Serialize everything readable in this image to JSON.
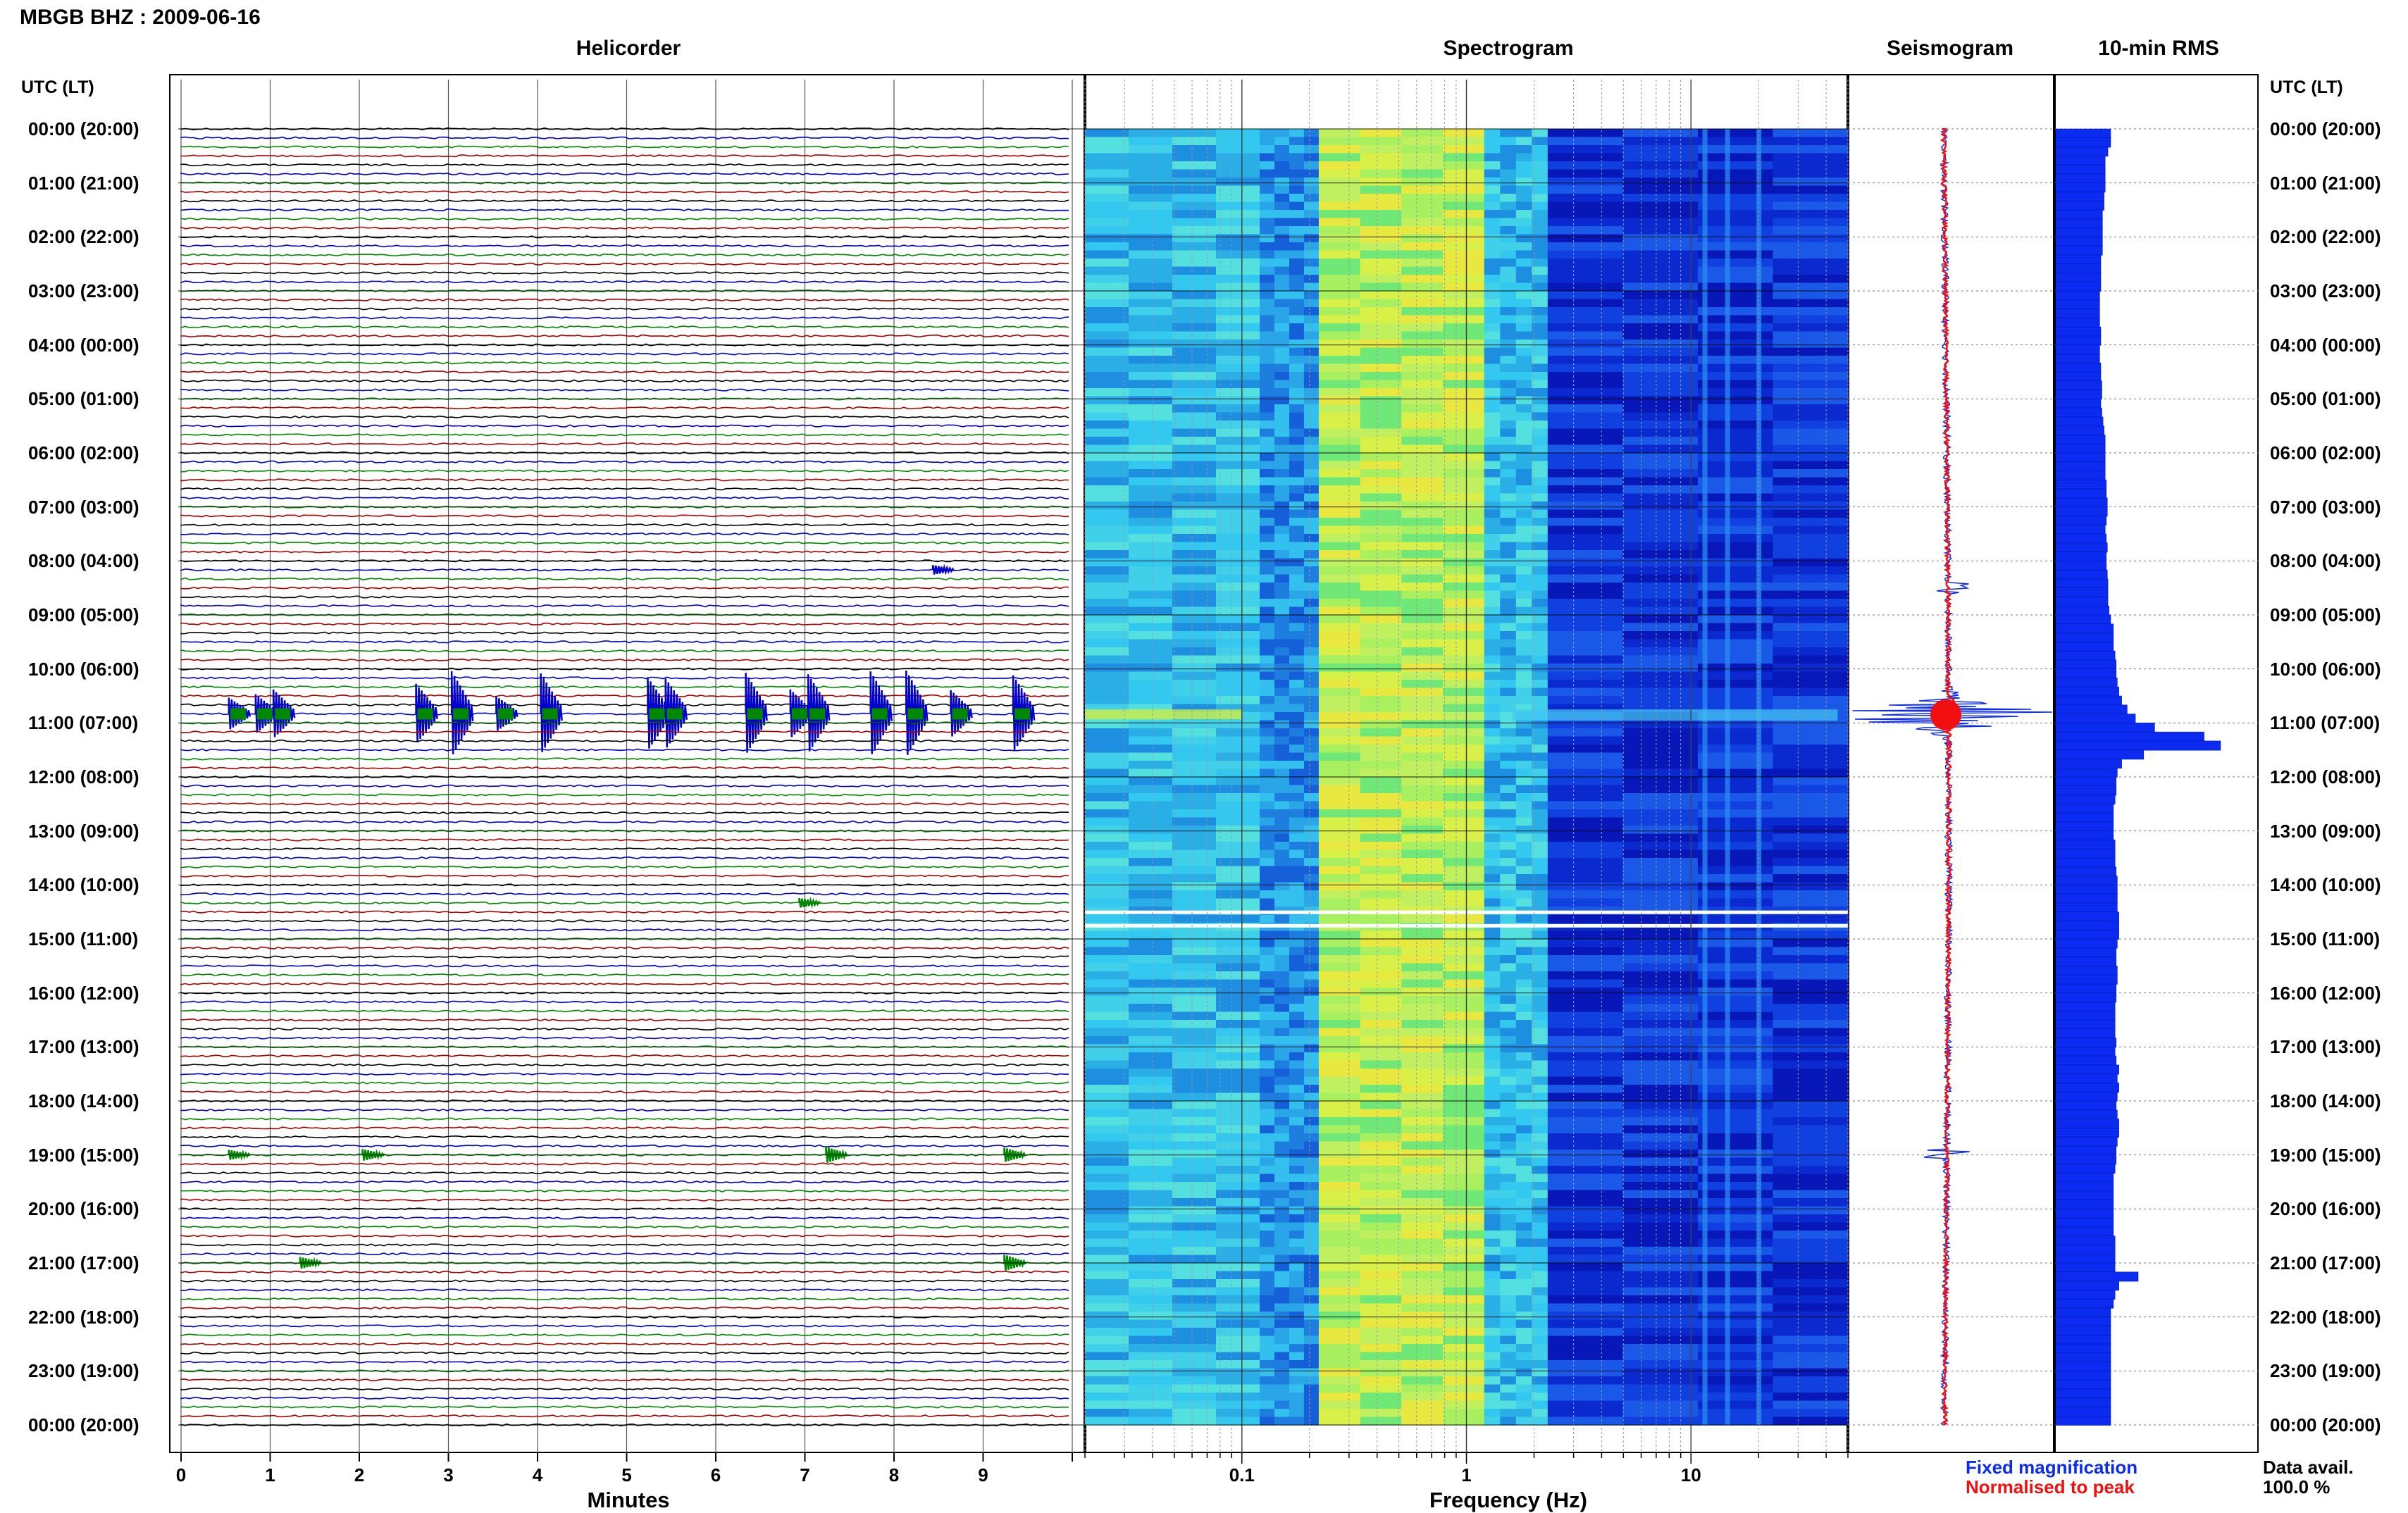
{
  "header": {
    "station": "MBGB BHZ : 2009-06-16",
    "utc_label_left": "UTC (LT)",
    "utc_label_right": "UTC (LT)"
  },
  "panels": {
    "helicorder": "Helicorder",
    "spectrogram": "Spectrogram",
    "seismogram": "Seismogram",
    "rms": "10-min RMS"
  },
  "time_labels": [
    "00:00 (20:00)",
    "01:00 (21:00)",
    "02:00 (22:00)",
    "03:00 (23:00)",
    "04:00 (00:00)",
    "05:00 (01:00)",
    "06:00 (02:00)",
    "07:00 (03:00)",
    "08:00 (04:00)",
    "09:00 (05:00)",
    "10:00 (06:00)",
    "11:00 (07:00)",
    "12:00 (08:00)",
    "13:00 (09:00)",
    "14:00 (10:00)",
    "15:00 (11:00)",
    "16:00 (12:00)",
    "17:00 (13:00)",
    "18:00 (14:00)",
    "19:00 (15:00)",
    "20:00 (16:00)",
    "21:00 (17:00)",
    "22:00 (18:00)",
    "23:00 (19:00)",
    "00:00 (20:00)"
  ],
  "footer": {
    "legend_fixed": "Fixed magnification",
    "legend_norm": "Normalised to peak",
    "data_avail_label": "Data avail.",
    "data_avail_value": "100.0 %"
  },
  "colors": {
    "trace_cycle": [
      "#000000",
      "#0000cc",
      "#008800",
      "#aa0000"
    ],
    "fixed_magnification": "#0b2bf0",
    "normalised_to_peak": "#f01010",
    "rms_bar": "#0b2bf0"
  },
  "chart_data": [
    {
      "type": "line",
      "title": "Helicorder",
      "xlabel": "Minutes",
      "ylabel": "UTC (LT)",
      "x_ticks": [
        "0",
        "1",
        "2",
        "3",
        "4",
        "5",
        "6",
        "7",
        "8",
        "9"
      ],
      "xlim": [
        0,
        10
      ],
      "rows": 144,
      "events": [
        {
          "hour": 10.8,
          "minutes": [
            0.6,
            0.9,
            1.1,
            2.7,
            3.1,
            3.6,
            4.1,
            5.3,
            5.5,
            6.4,
            6.9,
            7.1,
            7.8,
            8.2,
            8.7,
            9.4
          ]
        },
        {
          "hour": 8.2,
          "minutes": [
            8.5
          ]
        },
        {
          "hour": 14.3,
          "minutes": [
            7.0
          ]
        },
        {
          "hour": 19.0,
          "minutes": [
            0.6,
            2.1,
            7.3,
            9.3
          ]
        },
        {
          "hour": 21.0,
          "minutes": [
            1.4,
            9.3
          ]
        }
      ]
    },
    {
      "type": "heatmap",
      "title": "Spectrogram",
      "xlabel": "Frequency (Hz)",
      "x_scale": "log",
      "x_ticks": [
        "0.1",
        "1",
        "10"
      ],
      "xlim": [
        0.02,
        50
      ],
      "bands": [
        {
          "freq": [
            0.02,
            0.12
          ],
          "level": "cyan"
        },
        {
          "freq": [
            0.12,
            0.22
          ],
          "level": "cyan-blue"
        },
        {
          "freq": [
            0.22,
            1.2
          ],
          "level": "green-yellow"
        },
        {
          "freq": [
            1.2,
            2.3
          ],
          "level": "cyan"
        },
        {
          "freq": [
            2.3,
            50
          ],
          "level": "blue"
        }
      ],
      "lines_hz": [
        11.5,
        14.5,
        20
      ],
      "gaps_hour": [
        14.5,
        14.75
      ]
    },
    {
      "type": "line",
      "title": "Seismogram",
      "series": [
        {
          "name": "Fixed magnification"
        },
        {
          "name": "Normalised to peak"
        }
      ],
      "peak_hour": 10.85
    },
    {
      "type": "bar",
      "title": "10-min RMS",
      "orientation": "horizontal",
      "values": [
        1.0,
        1.0,
        0.95,
        0.9,
        0.9,
        0.9,
        0.9,
        0.88,
        0.88,
        0.85,
        0.85,
        0.85,
        0.85,
        0.85,
        0.82,
        0.82,
        0.82,
        0.82,
        0.8,
        0.8,
        0.8,
        0.8,
        0.82,
        0.82,
        0.8,
        0.8,
        0.82,
        0.82,
        0.84,
        0.84,
        0.82,
        0.84,
        0.86,
        0.88,
        0.9,
        0.9,
        0.9,
        0.9,
        0.9,
        0.92,
        0.92,
        0.94,
        0.94,
        0.92,
        0.9,
        0.92,
        0.94,
        0.92,
        0.92,
        0.94,
        0.95,
        0.95,
        0.95,
        0.97,
        1.0,
        1.05,
        1.05,
        1.05,
        1.08,
        1.1,
        1.1,
        1.12,
        1.15,
        1.2,
        1.3,
        1.45,
        1.8,
        2.7,
        3.0,
        1.6,
        1.2,
        1.12,
        1.1,
        1.1,
        1.08,
        1.05,
        1.05,
        1.05,
        1.05,
        1.08,
        1.08,
        1.08,
        1.1,
        1.12,
        1.12,
        1.12,
        1.12,
        1.15,
        1.15,
        1.15,
        1.12,
        1.1,
        1.1,
        1.12,
        1.12,
        1.1,
        1.1,
        1.08,
        1.08,
        1.08,
        1.08,
        1.1,
        1.08,
        1.1,
        1.15,
        1.12,
        1.15,
        1.12,
        1.1,
        1.12,
        1.15,
        1.15,
        1.12,
        1.1,
        1.1,
        1.08,
        1.05,
        1.05,
        1.05,
        1.05,
        1.05,
        1.05,
        1.05,
        1.08,
        1.08,
        1.08,
        1.08,
        1.5,
        1.15,
        1.08,
        1.05,
        1.0,
        1.0,
        1.0,
        1.0,
        1.0,
        1.0,
        1.0,
        1.0,
        1.0,
        1.0,
        1.0,
        1.0,
        1.0
      ]
    }
  ]
}
